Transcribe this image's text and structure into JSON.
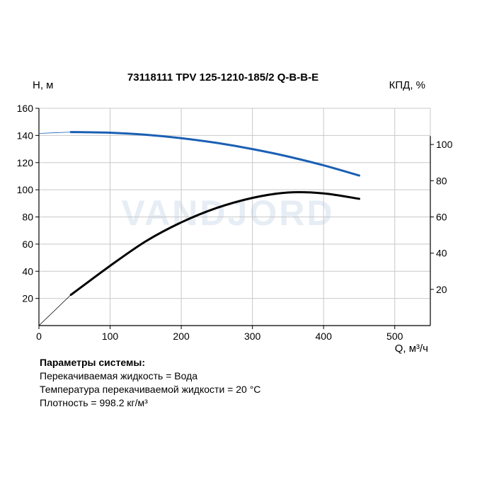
{
  "chart_data": {
    "type": "line",
    "title": "73118111 TPV 125-1210-185/2 Q-B-B-E",
    "ylabel_left": "H, м",
    "ylabel_right": "КПД, %",
    "xlabel": "Q, м³/ч",
    "xlim": [
      0,
      550
    ],
    "ylim_left": [
      0,
      160
    ],
    "ylim_right": [
      0,
      120
    ],
    "x_ticks": [
      0,
      100,
      200,
      300,
      400,
      500
    ],
    "y_ticks_left": [
      20,
      40,
      60,
      80,
      100,
      120,
      140,
      160
    ],
    "y_ticks_right": [
      20,
      40,
      60,
      80,
      100
    ],
    "grid": true,
    "watermark": "VANDJORD",
    "series": [
      {
        "axis": "left",
        "color": "#1a5fb4",
        "x": [
          0,
          45,
          100,
          150,
          200,
          250,
          300,
          350,
          400,
          450
        ],
        "y": [
          141.5,
          142.5,
          142,
          140.5,
          138,
          134.5,
          130,
          124.5,
          118,
          110.5
        ]
      },
      {
        "axis": "right",
        "color": "#000000",
        "x": [
          0,
          45,
          100,
          150,
          200,
          250,
          300,
          350,
          400,
          450
        ],
        "y": [
          0,
          17,
          33,
          46.5,
          57,
          65,
          70.5,
          73.5,
          73,
          70
        ]
      }
    ]
  },
  "params": {
    "title": "Параметры системы:",
    "lines": [
      "Перекачиваемая жидкость = Вода",
      "Температура перекачиваемой жидкости = 20 °C",
      "Плотность = 998.2 кг/м³"
    ]
  }
}
